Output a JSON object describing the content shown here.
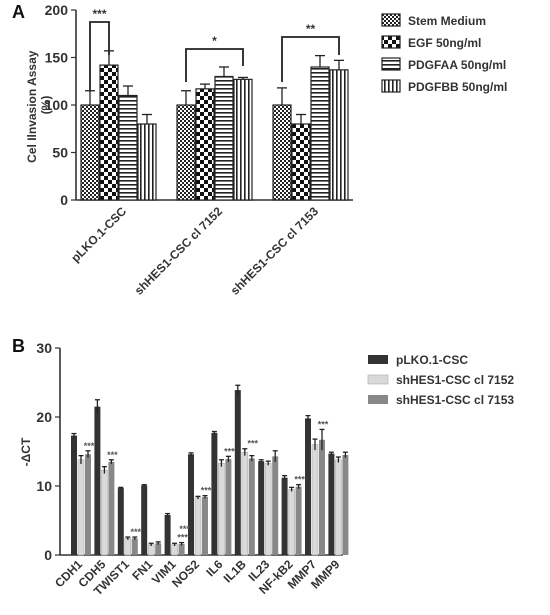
{
  "chart_data": [
    {
      "type": "bar",
      "panel": "A",
      "ylabel_line1": "Cel Ilnvasion Assay",
      "ylabel_line2": "(%)",
      "ylim": [
        0,
        200
      ],
      "yticks": [
        "0",
        "50",
        "100",
        "150",
        "200"
      ],
      "categories": [
        "pLKO.1-CSC",
        "shHES1-CSC cl 7152",
        "shHES1-CSC cl 7153"
      ],
      "series": [
        {
          "name": "Stem Medium",
          "pattern": "checker",
          "values": [
            100,
            100,
            100
          ],
          "errors": [
            15,
            15,
            18
          ]
        },
        {
          "name": "EGF 50ng/ml",
          "pattern": "coarse",
          "values": [
            142,
            117,
            80
          ],
          "errors": [
            15,
            5,
            10
          ]
        },
        {
          "name": "PDGFAA 50ng/ml",
          "pattern": "hstripes",
          "values": [
            110,
            130,
            140
          ],
          "errors": [
            10,
            10,
            12
          ]
        },
        {
          "name": "PDGFBB 50ng/ml",
          "pattern": "vstripes",
          "values": [
            80,
            127,
            137
          ],
          "errors": [
            10,
            2,
            10
          ]
        }
      ],
      "significance": [
        {
          "category": 0,
          "from": 0,
          "to": 1,
          "label": "***"
        },
        {
          "category": 1,
          "from": 0,
          "to": 3,
          "label": "*"
        },
        {
          "category": 2,
          "from": 0,
          "to": 3,
          "label": "**"
        }
      ],
      "legend_position": "right"
    },
    {
      "type": "bar",
      "panel": "B",
      "ylabel": "-ΔCT",
      "ylim": [
        0,
        30
      ],
      "yticks": [
        "0",
        "10",
        "20",
        "30"
      ],
      "categories": [
        "CDH1",
        "CDH5",
        "TWIST1",
        "FN1",
        "VIM1",
        "NOS2",
        "IL6",
        "IL1B",
        "IL23",
        "NF-kB2",
        "MMP7",
        "MMP9"
      ],
      "series": [
        {
          "name": "pLKO.1-CSC",
          "color": "#333333",
          "values": [
            17.3,
            21.5,
            9.7,
            10.1,
            5.8,
            14.6,
            17.7,
            23.9,
            13.6,
            11.2,
            19.8,
            14.7
          ],
          "errors": [
            0.3,
            1,
            0.1,
            0.1,
            0.2,
            0.2,
            0.2,
            0.7,
            0.2,
            0.3,
            0.4,
            0.2
          ]
        },
        {
          "name": "shHES1-CSC cl 7152",
          "color": "#d9d9d9",
          "values": [
            13.8,
            12.3,
            2.4,
            1.5,
            1.5,
            8.3,
            13.3,
            14.9,
            13.3,
            9.5,
            16.0,
            13.8
          ],
          "errors": [
            0.6,
            0.5,
            0.2,
            0.2,
            0.2,
            0.2,
            0.5,
            0.5,
            0.3,
            0.3,
            0.8,
            0.4
          ]
        },
        {
          "name": "shHES1-CSC cl 7153",
          "color": "#888888",
          "values": [
            14.6,
            13.5,
            2.4,
            1.7,
            1.6,
            8.4,
            13.9,
            14.0,
            14.3,
            9.9,
            16.7,
            14.5
          ],
          "errors": [
            0.5,
            0.3,
            0.2,
            0.2,
            0.2,
            0.2,
            0.4,
            0.4,
            0.8,
            0.3,
            1.5,
            0.4
          ]
        }
      ],
      "significance": [
        {
          "category": 0,
          "label": "***"
        },
        {
          "category": 1,
          "label": "***"
        },
        {
          "category": 2,
          "label": "***"
        },
        {
          "category": 4,
          "label": "***"
        },
        {
          "category": 4,
          "label": "***",
          "second": true
        },
        {
          "category": 5,
          "label": "***"
        },
        {
          "category": 6,
          "label": "***"
        },
        {
          "category": 7,
          "label": "***"
        },
        {
          "category": 9,
          "label": "***"
        },
        {
          "category": 10,
          "label": "***"
        }
      ],
      "legend_position": "right"
    }
  ]
}
